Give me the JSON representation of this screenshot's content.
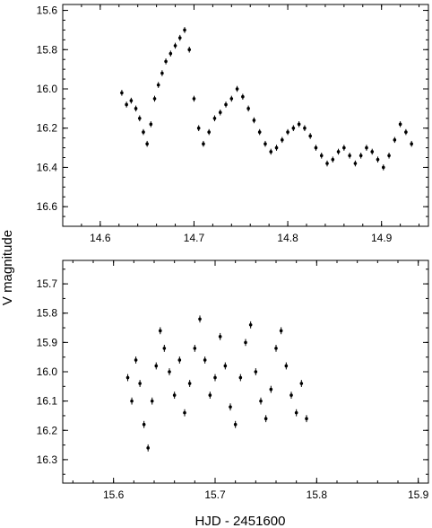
{
  "figure": {
    "ylabel": "V magnitude",
    "xlabel": "HJD - 2451600"
  },
  "chart_data": [
    {
      "type": "scatter",
      "panel": "top",
      "xlim": [
        14.56,
        14.95
      ],
      "ylim": [
        16.7,
        15.57
      ],
      "y_inverted": true,
      "x_ticks": [
        14.6,
        14.7,
        14.8,
        14.9
      ],
      "x_tick_labels": [
        "14.6",
        "14.7",
        "14.8",
        "14.9"
      ],
      "y_ticks": [
        15.6,
        15.8,
        16.0,
        16.2,
        16.4,
        16.6
      ],
      "y_tick_labels": [
        "15.6",
        "15.8",
        "16.0",
        "16.2",
        "16.4",
        "16.6"
      ],
      "minor_x_step": 0.02,
      "minor_y_step": 0.05,
      "marker": "point-with-errorbar",
      "error_bar": 0.015,
      "x": [
        14.623,
        14.628,
        14.633,
        14.638,
        14.642,
        14.646,
        14.65,
        14.654,
        14.658,
        14.662,
        14.666,
        14.67,
        14.675,
        14.68,
        14.685,
        14.69,
        14.695,
        14.7,
        14.705,
        14.71,
        14.716,
        14.722,
        14.728,
        14.734,
        14.74,
        14.746,
        14.752,
        14.758,
        14.764,
        14.77,
        14.776,
        14.782,
        14.788,
        14.794,
        14.8,
        14.806,
        14.812,
        14.818,
        14.824,
        14.83,
        14.836,
        14.842,
        14.848,
        14.854,
        14.86,
        14.866,
        14.872,
        14.878,
        14.884,
        14.89,
        14.896,
        14.902,
        14.908,
        14.914,
        14.92,
        14.926,
        14.932
      ],
      "y": [
        16.02,
        16.08,
        16.06,
        16.1,
        16.15,
        16.22,
        16.28,
        16.18,
        16.05,
        15.98,
        15.92,
        15.86,
        15.82,
        15.78,
        15.74,
        15.7,
        15.8,
        16.05,
        16.2,
        16.28,
        16.22,
        16.15,
        16.12,
        16.08,
        16.05,
        16.0,
        16.04,
        16.1,
        16.16,
        16.22,
        16.28,
        16.32,
        16.3,
        16.26,
        16.22,
        16.2,
        16.18,
        16.2,
        16.24,
        16.3,
        16.34,
        16.38,
        16.36,
        16.32,
        16.3,
        16.34,
        16.38,
        16.34,
        16.3,
        16.32,
        16.36,
        16.4,
        16.34,
        16.26,
        16.18,
        16.22,
        16.28
      ]
    },
    {
      "type": "scatter",
      "panel": "bottom",
      "xlim": [
        15.55,
        15.91
      ],
      "ylim": [
        16.38,
        15.62
      ],
      "y_inverted": true,
      "x_ticks": [
        15.6,
        15.7,
        15.8,
        15.9
      ],
      "x_tick_labels": [
        "15.6",
        "15.7",
        "15.8",
        "15.9"
      ],
      "y_ticks": [
        15.7,
        15.8,
        15.9,
        16.0,
        16.1,
        16.2,
        16.3
      ],
      "y_tick_labels": [
        "15.7",
        "15.8",
        "15.9",
        "16.0",
        "16.1",
        "16.2",
        "16.3"
      ],
      "minor_x_step": 0.02,
      "minor_y_step": 0.05,
      "marker": "point-with-errorbar",
      "error_bar": 0.012,
      "x": [
        15.614,
        15.618,
        15.622,
        15.626,
        15.63,
        15.634,
        15.638,
        15.642,
        15.646,
        15.65,
        15.655,
        15.66,
        15.665,
        15.67,
        15.675,
        15.68,
        15.685,
        15.69,
        15.695,
        15.7,
        15.705,
        15.71,
        15.715,
        15.72,
        15.725,
        15.73,
        15.735,
        15.74,
        15.745,
        15.75,
        15.755,
        15.76,
        15.765,
        15.77,
        15.775,
        15.78,
        15.785,
        15.79
      ],
      "y": [
        16.02,
        16.1,
        15.96,
        16.04,
        16.18,
        16.26,
        16.1,
        15.98,
        15.86,
        15.92,
        16.0,
        16.08,
        15.96,
        16.14,
        16.04,
        15.92,
        15.82,
        15.96,
        16.08,
        16.02,
        15.88,
        15.98,
        16.12,
        16.18,
        16.02,
        15.9,
        15.84,
        16.0,
        16.1,
        16.16,
        16.06,
        15.92,
        15.86,
        15.98,
        16.08,
        16.14,
        16.04,
        16.16
      ]
    }
  ]
}
